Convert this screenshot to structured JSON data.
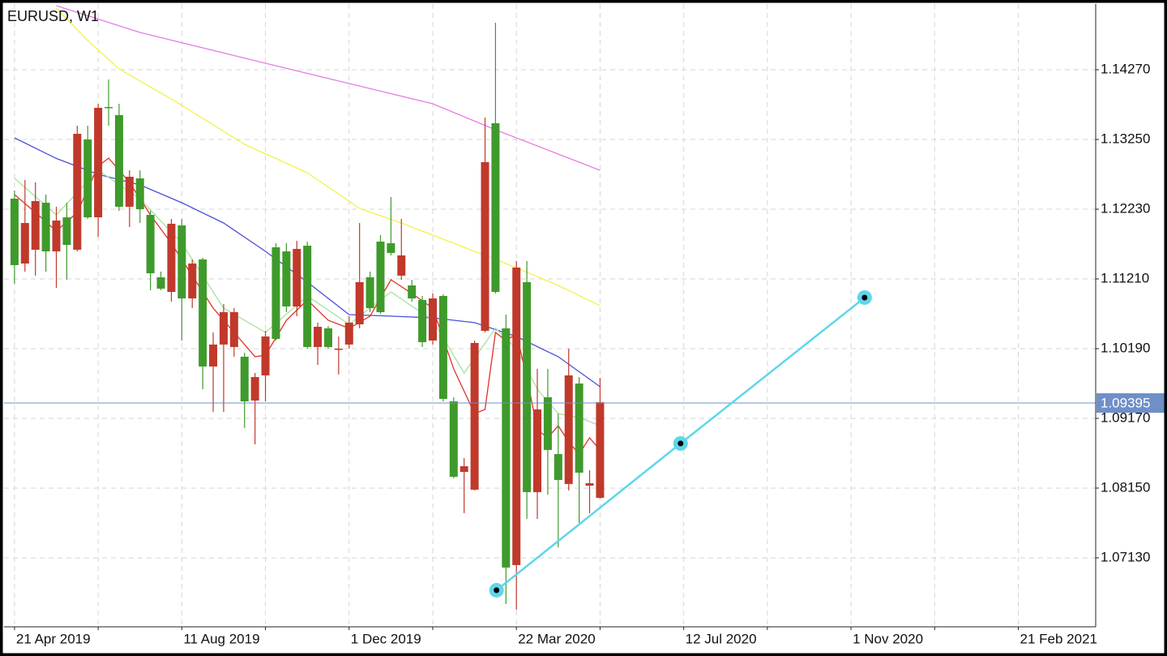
{
  "chart_data": {
    "type": "candlestick",
    "title": "EURUSD, W1",
    "x": [
      0,
      1,
      2,
      3,
      4,
      5,
      6,
      7,
      8,
      9,
      10,
      11,
      12,
      13,
      14,
      15,
      16,
      17,
      18,
      19,
      20,
      21,
      22,
      23,
      24,
      25,
      26,
      27,
      28,
      29,
      30,
      31,
      32,
      33,
      34,
      35,
      36,
      37,
      38,
      39,
      40,
      41,
      42,
      43,
      44,
      45,
      46,
      47,
      48,
      49,
      50,
      51,
      52,
      53,
      54,
      55,
      56
    ],
    "open": [
      1.11412,
      1.12028,
      1.12349,
      1.11613,
      1.12064,
      1.11708,
      1.13333,
      1.12111,
      1.13713,
      1.13713,
      1.12266,
      1.12704,
      1.1223,
      1.11293,
      1.11068,
      1.12017,
      1.10925,
      1.11435,
      1.09929,
      1.1025,
      1.10724,
      1.10724,
      1.09419,
      1.09775,
      1.10368,
      1.10332,
      1.10807,
      1.11649,
      1.10214,
      1.1051,
      1.10214,
      1.1019,
      1.1057,
      1.11163,
      1.10783,
      1.10724,
      1.1159,
      1.11554,
      1.10925,
      1.10285,
      1.10925,
      1.09455,
      1.08316,
      1.0847,
      1.10273,
      1.12918,
      1.1102,
      1.06988,
      1.11376,
      1.08091,
      1.09301,
      1.08708,
      1.08269,
      1.09799,
      1.08376,
      1.08221,
      1.09407
    ],
    "high": [
      1.12503,
      1.12657,
      1.12621,
      1.12444,
      1.12266,
      1.12325,
      1.13452,
      1.13452,
      1.13772,
      1.14128,
      1.13772,
      1.12799,
      1.12799,
      1.12206,
      1.11317,
      1.12088,
      1.12088,
      1.11495,
      1.11518,
      1.10427,
      1.10842,
      1.10783,
      1.10131,
      1.09834,
      1.10451,
      1.11732,
      1.11732,
      1.11768,
      1.11756,
      1.1057,
      1.10522,
      1.10368,
      1.10665,
      1.12028,
      1.11317,
      1.11851,
      1.12408,
      1.12088,
      1.11198,
      1.10961,
      1.10997,
      1.10985,
      1.09479,
      1.08589,
      1.10309,
      1.1357,
      1.14958,
      1.10688,
      1.11471,
      1.11471,
      1.09894,
      1.09894,
      1.09241,
      1.1019,
      1.09775,
      1.08411,
      1.09763
    ],
    "low": [
      1.11139,
      1.11317,
      1.11258,
      1.11317,
      1.1108,
      1.11198,
      1.11613,
      1.12088,
      1.11827,
      1.13452,
      1.12206,
      1.11969,
      1.12028,
      1.11044,
      1.11044,
      1.10878,
      1.10309,
      1.10783,
      1.09597,
      1.09265,
      1.09265,
      1.10072,
      1.09028,
      1.08791,
      1.09419,
      1.10309,
      1.10724,
      1.10665,
      1.1019,
      1.09953,
      1.1019,
      1.09811,
      1.1019,
      1.10487,
      1.10724,
      1.107,
      1.11554,
      1.11198,
      1.10878,
      1.10214,
      1.1025,
      1.09419,
      1.08293,
      1.07783,
      1.08115,
      1.10427,
      1.10997,
      1.06454,
      1.06371,
      1.077,
      1.077,
      1.08055,
      1.07284,
      1.08115,
      1.0764,
      1.07783,
      1.07996
    ],
    "close": [
      1.12384,
      1.11435,
      1.11637,
      1.12325,
      1.11613,
      1.12111,
      1.11637,
      1.1325,
      1.12111,
      1.13725,
      1.13606,
      1.12266,
      1.12681,
      1.12147,
      1.11234,
      1.1102,
      1.11993,
      1.10925,
      1.11495,
      1.09929,
      1.1025,
      1.10214,
      1.10072,
      1.09431,
      1.09799,
      1.11673,
      1.11613,
      1.10807,
      1.11696,
      1.10214,
      1.10487,
      1.10178,
      1.1025,
      1.10546,
      1.11234,
      1.11756,
      1.11732,
      1.11258,
      1.11115,
      1.10902,
      1.10309,
      1.10961,
      1.09419,
      1.08387,
      1.08127,
      1.10451,
      1.13487,
      1.10487,
      1.07024,
      1.11163,
      1.08091,
      1.09479,
      1.08648,
      1.0821,
      1.0968,
      1.08186,
      1.08008
    ],
    "up_color": "#3f9a2c",
    "down_color": "#c0392b",
    "xlim": [
      -1,
      103.4
    ],
    "ylim": [
      1.06121,
      1.15231
    ],
    "xticks": [
      {
        "value": 0,
        "label": "21 Apr 2019"
      },
      {
        "value": 8,
        "label": null
      },
      {
        "value": 16,
        "label": "11 Aug 2019"
      },
      {
        "value": 24,
        "label": null
      },
      {
        "value": 32,
        "label": "1 Dec 2019"
      },
      {
        "value": 40,
        "label": null
      },
      {
        "value": 48,
        "label": "22 Mar 2020"
      },
      {
        "value": 56,
        "label": null
      },
      {
        "value": 64,
        "label": "12 Jul 2020"
      },
      {
        "value": 72,
        "label": null
      },
      {
        "value": 80,
        "label": "1 Nov 2020"
      },
      {
        "value": 88,
        "label": null
      },
      {
        "value": 96,
        "label": "21 Feb 2021"
      }
    ],
    "yticks": [
      {
        "value": 1.1427,
        "label": "1.14270"
      },
      {
        "value": 1.1325,
        "label": "1.13250"
      },
      {
        "value": 1.1223,
        "label": "1.12230"
      },
      {
        "value": 1.1121,
        "label": "1.11210"
      },
      {
        "value": 1.1019,
        "label": "1.10190"
      },
      {
        "value": 1.0917,
        "label": "1.09170"
      },
      {
        "value": 1.0815,
        "label": "1.08150"
      },
      {
        "value": 1.0713,
        "label": "1.07130"
      }
    ],
    "grid": true,
    "lines": [
      {
        "color": "#e67ee0",
        "x": [
          4,
          12,
          24,
          32,
          40,
          46,
          52,
          56
        ],
        "values": [
          1.15207,
          1.14816,
          1.14365,
          1.14068,
          1.13772,
          1.13392,
          1.13037,
          1.12799
        ]
      },
      {
        "color": "#f2f24a",
        "x": [
          4,
          7,
          10,
          15,
          22,
          28,
          33,
          37,
          42,
          47,
          52,
          56
        ],
        "values": [
          1.15171,
          1.14697,
          1.14282,
          1.13843,
          1.13179,
          1.12764,
          1.12242,
          1.12028,
          1.11732,
          1.11435,
          1.11115,
          1.10819
        ]
      },
      {
        "color": "#4b4fd6",
        "x": [
          0,
          4,
          8,
          12,
          16,
          20,
          24,
          28,
          32,
          36,
          40,
          44,
          48,
          52,
          56
        ],
        "values": [
          1.13274,
          1.12972,
          1.1274,
          1.12586,
          1.12325,
          1.12028,
          1.11613,
          1.11163,
          1.10688,
          1.10665,
          1.10641,
          1.1057,
          1.10368,
          1.10072,
          1.09633
        ]
      },
      {
        "color": "#a6e39a",
        "x": [
          0,
          4,
          8,
          12,
          16,
          20,
          24,
          28,
          32,
          36,
          40,
          43,
          46,
          48,
          50,
          52,
          54,
          56
        ],
        "values": [
          1.12681,
          1.12147,
          1.12799,
          1.12384,
          1.11732,
          1.10783,
          1.10427,
          1.10961,
          1.10546,
          1.1102,
          1.10605,
          1.09834,
          1.10487,
          1.1019,
          1.09597,
          1.09241,
          1.09182,
          1.09063
        ]
      },
      {
        "color": "#e0322a",
        "x": [
          0,
          2,
          4,
          6,
          8,
          9,
          11,
          13,
          15,
          17,
          19,
          21,
          23,
          24,
          26,
          28,
          30,
          32,
          34,
          36,
          38,
          40,
          42,
          44,
          45,
          46,
          47,
          48,
          49,
          50,
          51,
          52,
          53,
          54,
          55,
          56
        ],
        "values": [
          1.12444,
          1.12183,
          1.1191,
          1.12183,
          1.12859,
          1.12977,
          1.12621,
          1.12147,
          1.11732,
          1.11258,
          1.10783,
          1.10427,
          1.10072,
          1.10095,
          1.10605,
          1.10902,
          1.10605,
          1.10487,
          1.10665,
          1.11198,
          1.10997,
          1.10783,
          1.09894,
          1.09241,
          1.09301,
          1.10427,
          1.10309,
          1.10404,
          1.09775,
          1.09004,
          1.08886,
          1.09063,
          1.08826,
          1.08648,
          1.08886,
          1.08708
        ]
      }
    ],
    "trendline": {
      "color": "#5fd6ea",
      "x": [
        46.1,
        63.7,
        81.3
      ],
      "values": [
        1.06656,
        1.08803,
        1.10937
      ]
    },
    "last_price": 1.09395,
    "last_price_color": "#6f8fc8"
  }
}
